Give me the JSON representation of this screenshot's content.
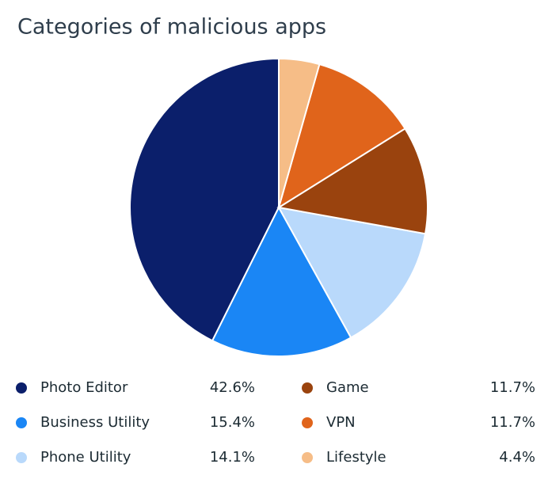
{
  "chart_data": {
    "type": "pie",
    "title": "Categories of malicious apps",
    "categories": [
      "Photo Editor",
      "Business Utility",
      "Phone Utility",
      "Game",
      "VPN",
      "Lifestyle"
    ],
    "values": [
      42.6,
      15.4,
      14.1,
      11.7,
      11.7,
      4.4
    ],
    "value_labels": [
      "42.6%",
      "15.4%",
      "14.1%",
      "11.7%",
      "11.7%",
      "4.4%"
    ],
    "colors": [
      "#0b1f6b",
      "#1a86f5",
      "#b9d9fb",
      "#9a430e",
      "#e0641b",
      "#f6bd87"
    ]
  }
}
